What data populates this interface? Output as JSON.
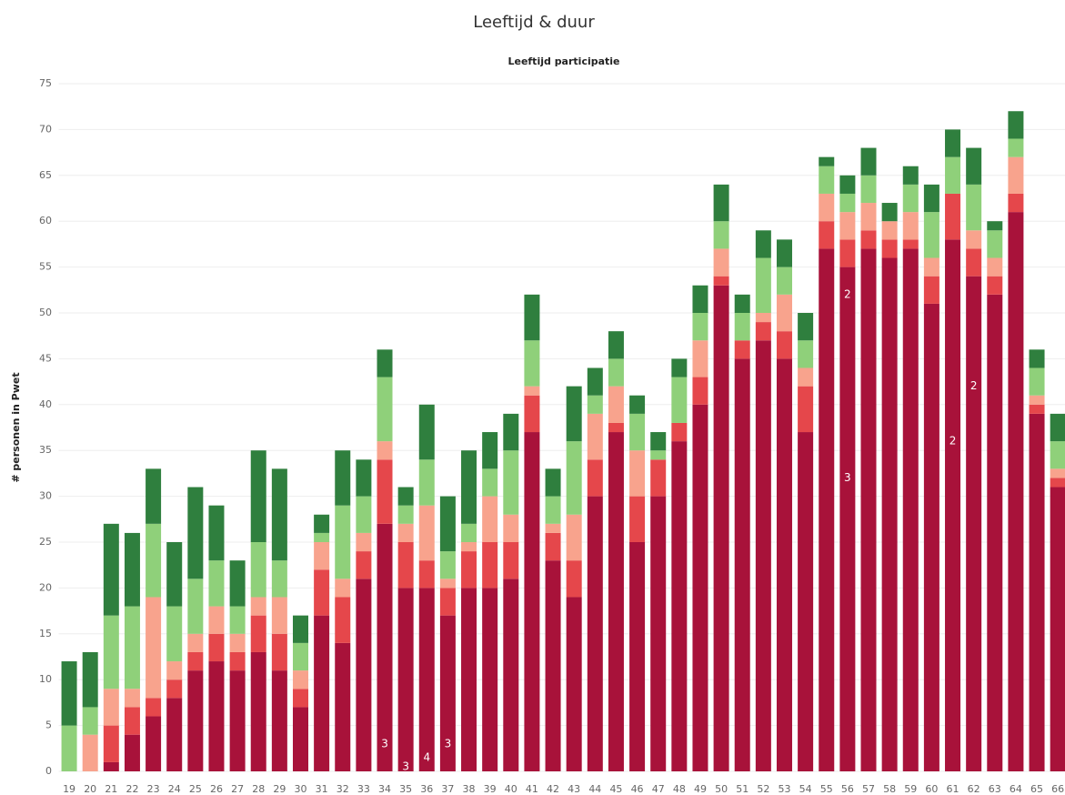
{
  "chart_data": {
    "type": "stacked_bar",
    "title": "Leeftijd & duur",
    "subtitle": "Leeftijd participatie",
    "y_label": "# personen in Pwet",
    "categories": [
      "19",
      "20",
      "21",
      "22",
      "23",
      "24",
      "25",
      "26",
      "27",
      "28",
      "29",
      "30",
      "31",
      "32",
      "33",
      "34",
      "35",
      "36",
      "37",
      "38",
      "39",
      "40",
      "41",
      "42",
      "43",
      "44",
      "45",
      "46",
      "47",
      "48",
      "49",
      "50",
      "51",
      "52",
      "53",
      "54",
      "55",
      "56",
      "57",
      "58",
      "59",
      "60",
      "61",
      "62",
      "63",
      "64",
      "65",
      "66"
    ],
    "series": [
      {
        "color": "#a8123a",
        "values": [
          0,
          0,
          1,
          4,
          6,
          8,
          11,
          12,
          11,
          13,
          11,
          7,
          17,
          14,
          21,
          27,
          20,
          20,
          17,
          20,
          20,
          21,
          37,
          23,
          19,
          30,
          37,
          25,
          30,
          36,
          40,
          53,
          45,
          47,
          45,
          37,
          57,
          55,
          57,
          56,
          57,
          51,
          58,
          54,
          52,
          61,
          39,
          31
        ]
      },
      {
        "color": "#e5474b",
        "values": [
          0,
          0,
          4,
          3,
          2,
          2,
          2,
          3,
          2,
          4,
          4,
          2,
          5,
          5,
          3,
          7,
          5,
          3,
          3,
          4,
          5,
          4,
          4,
          3,
          4,
          4,
          1,
          5,
          4,
          2,
          3,
          1,
          2,
          2,
          3,
          5,
          3,
          3,
          2,
          2,
          1,
          3,
          5,
          3,
          2,
          2,
          1,
          1
        ]
      },
      {
        "color": "#f8a38d",
        "values": [
          0,
          4,
          4,
          2,
          11,
          2,
          2,
          3,
          2,
          2,
          4,
          2,
          3,
          2,
          2,
          2,
          2,
          6,
          1,
          1,
          5,
          3,
          1,
          1,
          5,
          5,
          4,
          5,
          0,
          0,
          4,
          3,
          0,
          1,
          4,
          2,
          3,
          3,
          3,
          2,
          3,
          2,
          0,
          2,
          2,
          4,
          1,
          1
        ]
      },
      {
        "color": "#8fd07a",
        "values": [
          5,
          3,
          8,
          9,
          8,
          6,
          6,
          5,
          3,
          6,
          4,
          3,
          1,
          8,
          4,
          7,
          2,
          5,
          3,
          2,
          3,
          7,
          5,
          3,
          8,
          2,
          3,
          4,
          1,
          5,
          3,
          3,
          3,
          6,
          3,
          3,
          3,
          2,
          3,
          0,
          3,
          5,
          4,
          5,
          3,
          2,
          3,
          3
        ]
      },
      {
        "color": "#2f7f3e",
        "values": [
          7,
          6,
          10,
          8,
          6,
          7,
          10,
          6,
          5,
          10,
          10,
          3,
          2,
          6,
          4,
          3,
          2,
          6,
          6,
          8,
          4,
          4,
          5,
          3,
          6,
          3,
          3,
          2,
          2,
          2,
          3,
          4,
          2,
          3,
          3,
          3,
          1,
          2,
          3,
          2,
          2,
          3,
          3,
          4,
          1,
          3,
          2,
          3
        ]
      }
    ],
    "annotations": [
      {
        "category": "34",
        "y": 3,
        "text": "3"
      },
      {
        "category": "35",
        "y": 0.5,
        "text": "3"
      },
      {
        "category": "36",
        "y": 1.5,
        "text": "4"
      },
      {
        "category": "37",
        "y": 3,
        "text": "3"
      },
      {
        "category": "56",
        "y": 32,
        "text": "3"
      },
      {
        "category": "56",
        "y": 52,
        "text": "2"
      },
      {
        "category": "61",
        "y": 36,
        "text": "2"
      },
      {
        "category": "62",
        "y": 42,
        "text": "2"
      }
    ],
    "ylim": [
      0,
      75
    ],
    "yticks": [
      0,
      5,
      10,
      15,
      20,
      25,
      30,
      35,
      40,
      45,
      50,
      55,
      60,
      65,
      70,
      75
    ],
    "grid": true
  }
}
